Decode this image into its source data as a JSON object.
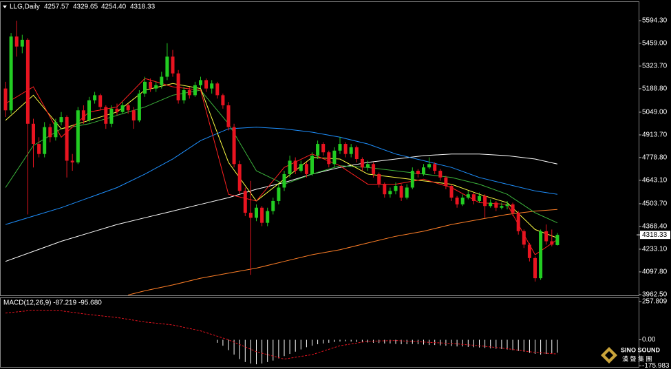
{
  "header": {
    "symbol": "LLG,Daily",
    "ohlc": [
      "4257.57",
      "4329.65",
      "4254.40",
      "4318.33"
    ]
  },
  "chart_data": [
    {
      "type": "candlestick",
      "up_color": "#22cc22",
      "down_color": "#e81420",
      "ylim": [
        3958,
        5705
      ],
      "yticks": [
        {
          "value": 5594.3,
          "label": "5594.30"
        },
        {
          "value": 5459,
          "label": "5459.00"
        },
        {
          "value": 5323.7,
          "label": "5323.70"
        },
        {
          "value": 5188.8,
          "label": "5188.80"
        },
        {
          "value": 5049,
          "label": "5049.00"
        },
        {
          "value": 4913.7,
          "label": "4913.70"
        },
        {
          "value": 4778.8,
          "label": "4778.80"
        },
        {
          "value": 4643.1,
          "label": "4643.10"
        },
        {
          "value": 4503.7,
          "label": "4503.70"
        },
        {
          "value": 4368.4,
          "label": "4368.40"
        },
        {
          "value": 4233.1,
          "label": "4233.10"
        },
        {
          "value": 4097.8,
          "label": "4097.80"
        },
        {
          "value": 3962.5,
          "label": "3962.50"
        }
      ],
      "ohlc": [
        [
          5190,
          5230,
          5020,
          5060
        ],
        [
          5060,
          5520,
          5040,
          5500
        ],
        [
          5500,
          5594,
          5380,
          5440
        ],
        [
          5440,
          5510,
          5400,
          5480
        ],
        [
          5480,
          5490,
          4440,
          4980
        ],
        [
          4980,
          5010,
          4720,
          4860
        ],
        [
          4860,
          4900,
          4780,
          4800
        ],
        [
          4800,
          4990,
          4780,
          4960
        ],
        [
          4960,
          4980,
          4870,
          4900
        ],
        [
          4900,
          5010,
          4880,
          4990
        ],
        [
          4990,
          5050,
          4970,
          5020
        ],
        [
          5020,
          5030,
          4660,
          4760
        ],
        [
          4760,
          4800,
          4700,
          4750
        ],
        [
          4750,
          5080,
          4740,
          5060
        ],
        [
          5060,
          5090,
          4980,
          5000
        ],
        [
          5000,
          5140,
          4990,
          5120
        ],
        [
          5120,
          5170,
          5100,
          5150
        ],
        [
          5150,
          5160,
          5060,
          5080
        ],
        [
          5080,
          5090,
          4950,
          4980
        ],
        [
          4980,
          5090,
          4960,
          5070
        ],
        [
          5070,
          5100,
          5030,
          5050
        ],
        [
          5050,
          5110,
          5040,
          5090
        ],
        [
          5090,
          5100,
          5040,
          5060
        ],
        [
          5060,
          5080,
          4950,
          5000
        ],
        [
          5000,
          5180,
          4990,
          5160
        ],
        [
          5160,
          5260,
          5140,
          5230
        ],
        [
          5230,
          5250,
          5170,
          5190
        ],
        [
          5190,
          5230,
          5170,
          5210
        ],
        [
          5210,
          5290,
          5190,
          5260
        ],
        [
          5260,
          5460,
          5240,
          5380
        ],
        [
          5380,
          5420,
          5260,
          5280
        ],
        [
          5280,
          5300,
          5100,
          5120
        ],
        [
          5120,
          5200,
          5100,
          5180
        ],
        [
          5180,
          5200,
          5130,
          5150
        ],
        [
          5150,
          5230,
          5140,
          5210
        ],
        [
          5210,
          5260,
          5190,
          5240
        ],
        [
          5240,
          5250,
          5170,
          5190
        ],
        [
          5190,
          5240,
          5160,
          5220
        ],
        [
          5220,
          5230,
          5130,
          5150
        ],
        [
          5150,
          5160,
          5070,
          5090
        ],
        [
          5090,
          5110,
          4940,
          4960
        ],
        [
          4960,
          4980,
          4720,
          4740
        ],
        [
          4740,
          4760,
          4560,
          4580
        ],
        [
          4580,
          4600,
          4430,
          4450
        ],
        [
          4450,
          4640,
          4080,
          4420
        ],
        [
          4420,
          4500,
          4400,
          4480
        ],
        [
          4480,
          4490,
          4370,
          4390
        ],
        [
          4390,
          4480,
          4370,
          4460
        ],
        [
          4460,
          4540,
          4440,
          4520
        ],
        [
          4520,
          4620,
          4500,
          4600
        ],
        [
          4600,
          4700,
          4580,
          4680
        ],
        [
          4680,
          4790,
          4660,
          4760
        ],
        [
          4760,
          4780,
          4680,
          4700
        ],
        [
          4700,
          4760,
          4690,
          4740
        ],
        [
          4740,
          4750,
          4660,
          4680
        ],
        [
          4680,
          4810,
          4670,
          4790
        ],
        [
          4790,
          4880,
          4770,
          4860
        ],
        [
          4860,
          4870,
          4790,
          4810
        ],
        [
          4810,
          4820,
          4720,
          4740
        ],
        [
          4740,
          4840,
          4720,
          4820
        ],
        [
          4820,
          4900,
          4800,
          4860
        ],
        [
          4860,
          4870,
          4780,
          4800
        ],
        [
          4800,
          4860,
          4780,
          4840
        ],
        [
          4840,
          4850,
          4750,
          4770
        ],
        [
          4770,
          4780,
          4700,
          4720
        ],
        [
          4720,
          4760,
          4700,
          4740
        ],
        [
          4740,
          4750,
          4660,
          4680
        ],
        [
          4680,
          4690,
          4600,
          4620
        ],
        [
          4620,
          4630,
          4540,
          4560
        ],
        [
          4560,
          4600,
          4540,
          4580
        ],
        [
          4580,
          4630,
          4560,
          4610
        ],
        [
          4610,
          4620,
          4520,
          4540
        ],
        [
          4540,
          4620,
          4530,
          4600
        ],
        [
          4600,
          4720,
          4590,
          4700
        ],
        [
          4700,
          4710,
          4660,
          4680
        ],
        [
          4680,
          4740,
          4670,
          4720
        ],
        [
          4720,
          4780,
          4710,
          4740
        ],
        [
          4740,
          4750,
          4680,
          4700
        ],
        [
          4700,
          4710,
          4640,
          4660
        ],
        [
          4660,
          4670,
          4590,
          4610
        ],
        [
          4610,
          4620,
          4520,
          4540
        ],
        [
          4540,
          4550,
          4480,
          4500
        ],
        [
          4500,
          4560,
          4490,
          4540
        ],
        [
          4540,
          4580,
          4530,
          4560
        ],
        [
          4560,
          4570,
          4500,
          4520
        ],
        [
          4520,
          4570,
          4510,
          4550
        ],
        [
          4550,
          4560,
          4420,
          4490
        ],
        [
          4490,
          4530,
          4480,
          4510
        ],
        [
          4510,
          4520,
          4460,
          4480
        ],
        [
          4480,
          4510,
          4470,
          4490
        ],
        [
          4490,
          4520,
          4470,
          4500
        ],
        [
          4500,
          4510,
          4430,
          4450
        ],
        [
          4450,
          4460,
          4320,
          4340
        ],
        [
          4340,
          4350,
          4240,
          4260
        ],
        [
          4260,
          4270,
          4160,
          4180
        ],
        [
          4180,
          4190,
          4040,
          4060
        ],
        [
          4060,
          4350,
          4050,
          4340
        ],
        [
          4340,
          4380,
          4260,
          4280
        ],
        [
          4280,
          4350,
          4250,
          4260
        ],
        [
          4257.57,
          4329.65,
          4254.4,
          4318.33
        ]
      ],
      "moving_averages": [
        {
          "color": "#ffffff",
          "x": [
            0,
            5,
            10,
            15,
            20,
            25,
            30,
            35,
            40,
            45,
            50,
            55,
            60,
            65,
            70,
            75,
            80,
            85,
            90,
            95,
            99
          ],
          "values": [
            4160,
            4220,
            4280,
            4330,
            4380,
            4420,
            4460,
            4500,
            4540,
            4590,
            4630,
            4680,
            4720,
            4750,
            4770,
            4790,
            4800,
            4800,
            4790,
            4770,
            4740
          ]
        },
        {
          "color": "#1e90ff",
          "x": [
            0,
            5,
            10,
            15,
            20,
            25,
            30,
            35,
            40,
            45,
            50,
            55,
            60,
            65,
            70,
            75,
            80,
            85,
            90,
            95,
            99
          ],
          "values": [
            4380,
            4430,
            4480,
            4540,
            4600,
            4680,
            4770,
            4880,
            4950,
            4960,
            4950,
            4930,
            4900,
            4860,
            4800,
            4760,
            4720,
            4660,
            4620,
            4580,
            4560
          ]
        },
        {
          "color": "#ff7f27",
          "x": [
            22,
            25,
            30,
            35,
            40,
            45,
            50,
            55,
            60,
            65,
            70,
            75,
            80,
            85,
            90,
            95,
            99
          ],
          "values": [
            3960,
            3985,
            4020,
            4060,
            4090,
            4120,
            4160,
            4200,
            4230,
            4270,
            4310,
            4340,
            4380,
            4410,
            4440,
            4460,
            4470
          ]
        },
        {
          "color": "#3cb43c",
          "x": [
            0,
            5,
            10,
            15,
            20,
            25,
            30,
            35,
            40,
            45,
            50,
            55,
            60,
            65,
            70,
            75,
            80,
            85,
            90,
            95,
            99
          ],
          "values": [
            4600,
            4850,
            4950,
            4980,
            5030,
            5080,
            5150,
            5180,
            4980,
            4700,
            4620,
            4680,
            4730,
            4720,
            4700,
            4680,
            4660,
            4620,
            4560,
            4450,
            4390
          ]
        },
        {
          "color": "#ffff44",
          "x": [
            0,
            5,
            10,
            15,
            20,
            25,
            30,
            35,
            40,
            45,
            50,
            55,
            60,
            65,
            70,
            75,
            80,
            85,
            90,
            95,
            99
          ],
          "values": [
            5000,
            5150,
            4950,
            5000,
            5050,
            5180,
            5220,
            5190,
            4750,
            4520,
            4650,
            4780,
            4770,
            4680,
            4660,
            4640,
            4620,
            4560,
            4510,
            4350,
            4300
          ]
        },
        {
          "color": "#ff2020",
          "x": [
            0,
            5,
            10,
            15,
            20,
            25,
            30,
            35,
            40,
            45,
            50,
            55,
            60,
            65,
            70,
            75,
            80,
            85,
            90,
            95,
            99
          ],
          "values": [
            5100,
            5200,
            4900,
            5050,
            5080,
            5250,
            5200,
            5180,
            4560,
            4520,
            4720,
            4800,
            4730,
            4620,
            4620,
            4650,
            4600,
            4510,
            4500,
            4200,
            4290
          ]
        }
      ]
    },
    {
      "type": "macd",
      "title": "MACD(12,26,9) -87.219 -95.680",
      "ylim": [
        -183,
        281
      ],
      "yticks": [
        257.809,
        {
          "value": 0,
          "label": "0.00"
        },
        -175.983
      ],
      "histogram": {
        "color": "#ffffff",
        "x": [
          38,
          39,
          40,
          41,
          42,
          43,
          44,
          45,
          46,
          47,
          48,
          49,
          50,
          51,
          52,
          53,
          54,
          55,
          56,
          57,
          58,
          59,
          60,
          61,
          62,
          63,
          64,
          65,
          66,
          67,
          68,
          69,
          70,
          71,
          72,
          73,
          74,
          75,
          76,
          77,
          78,
          79,
          80,
          81,
          82,
          83,
          84,
          85,
          86,
          87,
          88,
          89,
          90,
          91,
          92,
          93,
          94,
          95,
          96,
          97,
          98,
          99
        ],
        "values": [
          -20,
          -40,
          -70,
          -100,
          -130,
          -150,
          -160,
          -165,
          -160,
          -150,
          -140,
          -125,
          -110,
          -95,
          -80,
          -65,
          -50,
          -40,
          -30,
          -25,
          -20,
          -15,
          -12,
          -10,
          -12,
          -15,
          -15,
          -18,
          -20,
          -22,
          -25,
          -25,
          -28,
          -30,
          -30,
          -28,
          -30,
          -32,
          -35,
          -35,
          -38,
          -40,
          -42,
          -45,
          -45,
          -48,
          -50,
          -52,
          -55,
          -58,
          -60,
          -62,
          -65,
          -70,
          -75,
          -80,
          -88,
          -95,
          -100,
          -95,
          -90,
          -87.219
        ]
      },
      "signal": {
        "color": "#e81420",
        "x": [
          0,
          5,
          10,
          15,
          20,
          25,
          30,
          35,
          40,
          45,
          50,
          55,
          60,
          65,
          70,
          75,
          80,
          85,
          90,
          95,
          99
        ],
        "values": [
          180,
          200,
          195,
          170,
          150,
          120,
          100,
          60,
          0,
          -80,
          -130,
          -100,
          -40,
          -10,
          -5,
          -15,
          -25,
          -40,
          -60,
          -85,
          -95.68
        ]
      }
    }
  ],
  "logo": {
    "name": "SINO SOUND",
    "chinese": "漢 聲 集 團"
  }
}
